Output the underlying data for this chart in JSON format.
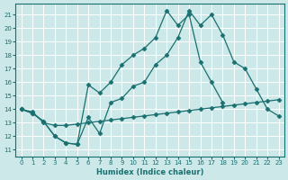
{
  "xlabel": "Humidex (Indice chaleur)",
  "xlim": [
    -0.5,
    23.5
  ],
  "ylim": [
    10.5,
    21.8
  ],
  "yticks": [
    11,
    12,
    13,
    14,
    15,
    16,
    17,
    18,
    19,
    20,
    21
  ],
  "xticks": [
    0,
    1,
    2,
    3,
    4,
    5,
    6,
    7,
    8,
    9,
    10,
    11,
    12,
    13,
    14,
    15,
    16,
    17,
    18,
    19,
    20,
    21,
    22,
    23
  ],
  "bg_color": "#cce8e8",
  "line_color": "#1a7070",
  "grid_color": "#ffffff",
  "line1_x": [
    0,
    1,
    2,
    3,
    4,
    5,
    6,
    7,
    8,
    9,
    10,
    11,
    12,
    13,
    14,
    15,
    16,
    17,
    18,
    19,
    20
  ],
  "line1_y": [
    14.0,
    13.7,
    13.1,
    12.0,
    11.5,
    11.4,
    15.8,
    15.2,
    16.0,
    17.3,
    18.0,
    18.5,
    19.3,
    21.3,
    20.2,
    21.0,
    17.5,
    16.0,
    14.5,
    null,
    null
  ],
  "line2_x": [
    0,
    1,
    2,
    3,
    4,
    5,
    6,
    7,
    8,
    9,
    10,
    11,
    12,
    13,
    14,
    15,
    16,
    17,
    18,
    19,
    20,
    21,
    22,
    23
  ],
  "line2_y": [
    14.0,
    13.7,
    13.1,
    12.0,
    11.5,
    11.4,
    13.4,
    12.2,
    14.5,
    14.8,
    15.7,
    16.0,
    17.3,
    18.0,
    19.3,
    21.3,
    20.2,
    21.0,
    19.5,
    17.5,
    17.0,
    15.5,
    14.0,
    13.5
  ],
  "line3_x": [
    0,
    1,
    2,
    3,
    4,
    5,
    6,
    7,
    8,
    9,
    10,
    11,
    12,
    13,
    14,
    15,
    16,
    17,
    18,
    19,
    20,
    21,
    22,
    23
  ],
  "line3_y": [
    14.0,
    13.8,
    13.0,
    12.8,
    12.8,
    12.9,
    13.0,
    13.1,
    13.2,
    13.3,
    13.4,
    13.5,
    13.6,
    13.7,
    13.8,
    13.9,
    14.0,
    14.1,
    14.2,
    14.3,
    14.4,
    14.5,
    14.6,
    14.7
  ],
  "marker": "D",
  "markersize": 2.5
}
